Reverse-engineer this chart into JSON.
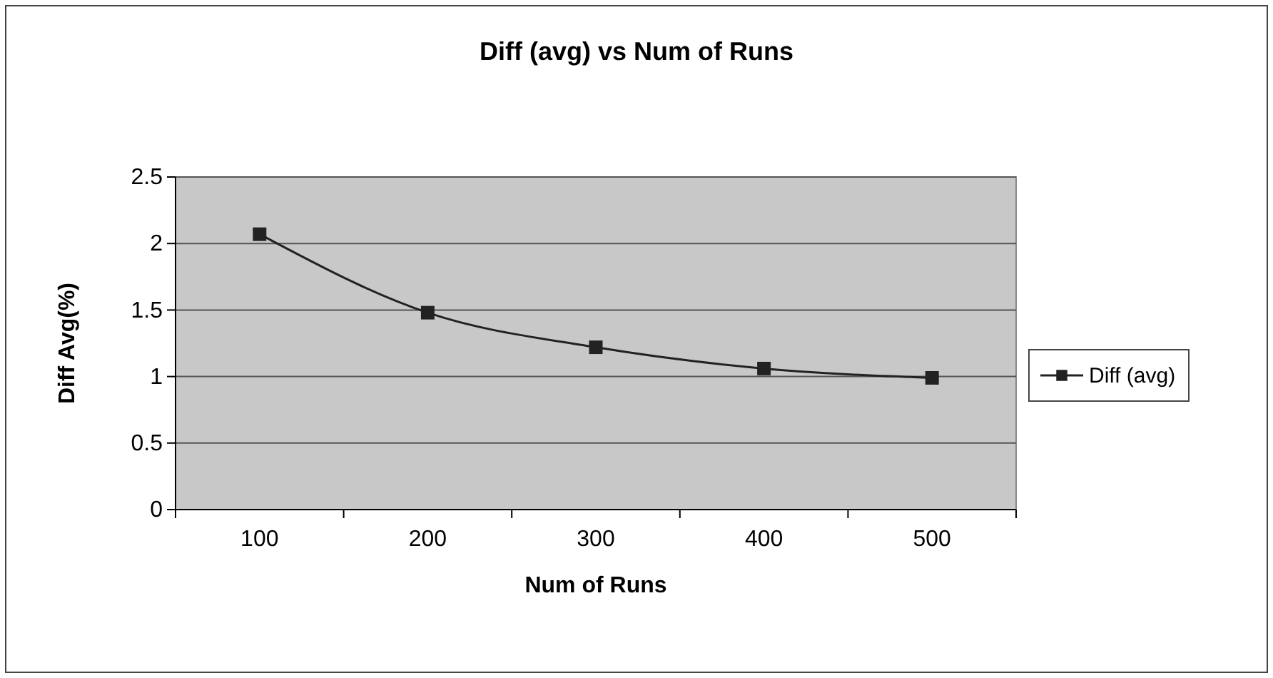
{
  "chart_data": {
    "type": "line",
    "title": "Diff (avg) vs Num of Runs",
    "xlabel": "Num of Runs",
    "ylabel": "Diff Avg(%)",
    "categories": [
      "100",
      "200",
      "300",
      "400",
      "500"
    ],
    "series": [
      {
        "name": "Diff (avg)",
        "color": "#222222",
        "values": [
          2.07,
          1.48,
          1.22,
          1.06,
          0.99
        ]
      }
    ],
    "ylim": [
      0,
      2.5
    ],
    "yticks": [
      0,
      0.5,
      1,
      1.5,
      2,
      2.5
    ],
    "grid": "y",
    "legend": "right",
    "marker": "square",
    "line_style": "solid"
  }
}
